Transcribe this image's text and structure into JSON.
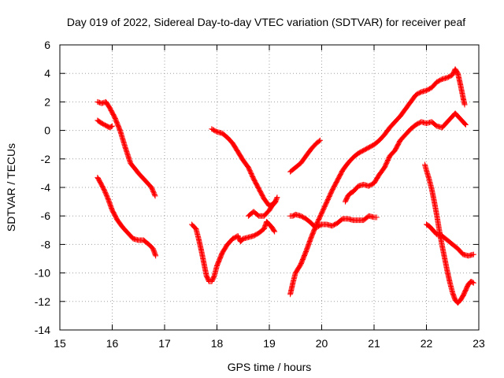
{
  "chart_data": {
    "type": "scatter",
    "title": "Day 019 of 2022, Sidereal Day-to-day VTEC variation (SDTVAR) for receiver peaf",
    "xlabel": "GPS time / hours",
    "ylabel": "SDTVAR / TECUs",
    "xlim": [
      15,
      23
    ],
    "ylim": [
      -14,
      6
    ],
    "xticks": [
      "15",
      "16",
      "17",
      "18",
      "19",
      "20",
      "21",
      "22",
      "23"
    ],
    "yticks": [
      "-14",
      "-12",
      "-10",
      "-8",
      "-6",
      "-4",
      "-2",
      "0",
      "2",
      "4",
      "6"
    ],
    "grid": true,
    "marker": "+",
    "color": "#ff0000",
    "series": [
      {
        "x": [
          15.72,
          15.8,
          15.88,
          15.95,
          16.05,
          16.15,
          16.25,
          16.35,
          16.5,
          16.65,
          16.75,
          16.82
        ],
        "y": [
          2.0,
          1.9,
          2.0,
          1.6,
          0.9,
          0.0,
          -1.2,
          -2.3,
          -3.0,
          -3.6,
          -4.0,
          -4.6
        ]
      },
      {
        "x": [
          15.72,
          15.8,
          15.9,
          15.95,
          16.0
        ],
        "y": [
          0.7,
          0.5,
          0.3,
          0.2,
          0.3
        ]
      },
      {
        "x": [
          15.72,
          15.78,
          15.85,
          15.92,
          16.0,
          16.1,
          16.2,
          16.3,
          16.4,
          16.5,
          16.6,
          16.7,
          16.78,
          16.83
        ],
        "y": [
          -3.3,
          -3.7,
          -4.2,
          -4.8,
          -5.6,
          -6.3,
          -6.8,
          -7.2,
          -7.6,
          -7.7,
          -7.7,
          -8.0,
          -8.3,
          -8.8
        ]
      },
      {
        "x": [
          17.52,
          17.6,
          17.65,
          17.7,
          17.75,
          17.8,
          17.85,
          17.9,
          17.95,
          18.0,
          18.1,
          18.2,
          18.3,
          18.4,
          18.45,
          18.5,
          18.6,
          18.7,
          18.8,
          18.9,
          18.95,
          19.0,
          19.05,
          19.1
        ],
        "y": [
          -6.6,
          -6.9,
          -7.6,
          -8.4,
          -9.3,
          -10.2,
          -10.6,
          -10.6,
          -10.2,
          -9.5,
          -8.6,
          -8.0,
          -7.6,
          -7.4,
          -7.8,
          -7.6,
          -7.5,
          -7.4,
          -7.2,
          -6.9,
          -6.4,
          -6.6,
          -6.8,
          -7.1
        ]
      },
      {
        "x": [
          17.9,
          18.0,
          18.1,
          18.2,
          18.3,
          18.4,
          18.5,
          18.6,
          18.7,
          18.8,
          18.9,
          19.0,
          19.05,
          19.12
        ],
        "y": [
          0.1,
          -0.1,
          -0.2,
          -0.5,
          -0.9,
          -1.5,
          -2.1,
          -2.6,
          -3.4,
          -4.1,
          -4.8,
          -5.3,
          -5.2,
          -5.0
        ]
      },
      {
        "x": [
          18.6,
          18.7,
          18.8,
          18.9,
          19.0,
          19.05,
          19.1,
          19.15
        ],
        "y": [
          -6.0,
          -5.7,
          -6.0,
          -6.0,
          -5.6,
          -5.3,
          -5.1,
          -4.7
        ]
      },
      {
        "x": [
          19.4,
          19.5,
          19.6,
          19.7,
          19.8,
          19.9,
          19.97
        ],
        "y": [
          -2.9,
          -2.6,
          -2.3,
          -1.8,
          -1.3,
          -0.9,
          -0.7
        ]
      },
      {
        "x": [
          19.4,
          19.45,
          19.5,
          19.6,
          19.7,
          19.8,
          19.85,
          19.9,
          20.0,
          20.1,
          20.2,
          20.3,
          20.4,
          20.5,
          20.6,
          20.7,
          20.8,
          20.9,
          21.0,
          21.05
        ],
        "y": [
          -6.0,
          -6.0,
          -5.9,
          -6.0,
          -6.2,
          -6.5,
          -6.7,
          -6.8,
          -6.6,
          -6.6,
          -6.7,
          -6.5,
          -6.2,
          -6.2,
          -6.3,
          -6.3,
          -6.3,
          -6.0,
          -6.1,
          -6.1
        ]
      },
      {
        "x": [
          19.4,
          19.45,
          19.5,
          19.6,
          19.7,
          19.8,
          19.9,
          20.0,
          20.1,
          20.2,
          20.3,
          20.4,
          20.5,
          20.6,
          20.7,
          20.8,
          20.9,
          21.0,
          21.1,
          21.2,
          21.3,
          21.4,
          21.5,
          21.6,
          21.7,
          21.8,
          21.9,
          22.0,
          22.1,
          22.2,
          22.3,
          22.4,
          22.5,
          22.55,
          22.6,
          22.65,
          22.7,
          22.73
        ],
        "y": [
          -11.5,
          -10.7,
          -10.0,
          -9.4,
          -8.5,
          -7.5,
          -6.6,
          -5.8,
          -5.0,
          -4.2,
          -3.5,
          -2.8,
          -2.3,
          -1.9,
          -1.6,
          -1.4,
          -1.2,
          -1.0,
          -0.7,
          -0.3,
          0.2,
          0.6,
          1.0,
          1.5,
          2.0,
          2.5,
          2.7,
          2.8,
          3.0,
          3.4,
          3.6,
          3.7,
          3.9,
          4.3,
          4.0,
          3.2,
          2.3,
          1.8
        ]
      },
      {
        "x": [
          20.45,
          20.5,
          20.55,
          20.6,
          20.7,
          20.8,
          20.9,
          21.0,
          21.1,
          21.2,
          21.3,
          21.4,
          21.5,
          21.6,
          21.7,
          21.8,
          21.9,
          22.0,
          22.1,
          22.2,
          22.3,
          22.4,
          22.5,
          22.55,
          22.6,
          22.7,
          22.75
        ],
        "y": [
          -5.0,
          -4.6,
          -4.4,
          -4.3,
          -3.9,
          -3.8,
          -3.9,
          -3.7,
          -3.1,
          -2.6,
          -1.8,
          -1.4,
          -0.7,
          -0.3,
          0.1,
          0.4,
          0.6,
          0.5,
          0.6,
          0.3,
          0.2,
          0.6,
          1.0,
          1.2,
          1.0,
          0.6,
          0.4
        ]
      },
      {
        "x": [
          21.97,
          22.0,
          22.05,
          22.1,
          22.15,
          22.2,
          22.25,
          22.3,
          22.35,
          22.4,
          22.45,
          22.5,
          22.55,
          22.6,
          22.65,
          22.7,
          22.75,
          22.8,
          22.85,
          22.9
        ],
        "y": [
          -2.4,
          -2.8,
          -3.4,
          -4.1,
          -5.0,
          -6.0,
          -7.1,
          -8.1,
          -9.0,
          -9.9,
          -10.7,
          -11.4,
          -11.9,
          -12.1,
          -11.9,
          -11.6,
          -11.2,
          -10.8,
          -10.6,
          -10.7
        ]
      },
      {
        "x": [
          22.0,
          22.05,
          22.1,
          22.15,
          22.2,
          22.3,
          22.4,
          22.5,
          22.6,
          22.7,
          22.8,
          22.9
        ],
        "y": [
          -6.6,
          -6.7,
          -6.9,
          -7.1,
          -7.3,
          -7.4,
          -7.7,
          -8.0,
          -8.3,
          -8.7,
          -8.8,
          -8.7
        ]
      }
    ]
  }
}
